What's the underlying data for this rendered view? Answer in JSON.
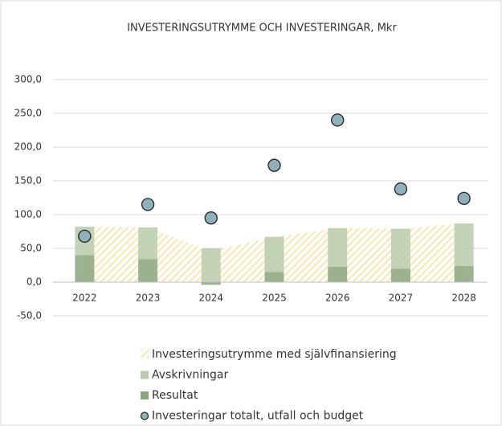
{
  "chart_data": {
    "type": "bar",
    "title": "INVESTERINGSUTRYMME OCH INVESTERINGAR, Mkr",
    "categories": [
      "2022",
      "2023",
      "2024",
      "2025",
      "2026",
      "2027",
      "2028"
    ],
    "series": [
      {
        "name": "Investeringsutrymme med självfinansiering",
        "type": "area",
        "color": "#f1e2ad",
        "values": [
          82,
          81,
          46,
          67,
          80,
          79,
          87
        ]
      },
      {
        "name": "Avskrivningar",
        "type": "bar",
        "color": "#b9cbad",
        "values": [
          42,
          47,
          50,
          52,
          57,
          59,
          63
        ]
      },
      {
        "name": "Resultat",
        "type": "bar",
        "color": "#8aa67c",
        "values": [
          40,
          34,
          -4,
          15,
          23,
          20,
          24
        ]
      },
      {
        "name": "Investeringar totalt, utfall och budget",
        "type": "scatter",
        "color": "#8fb1b9",
        "values": [
          68,
          115,
          95,
          173,
          240,
          138,
          124
        ]
      }
    ],
    "ylim": [
      -50,
      300
    ],
    "yticks": [
      {
        "value": -50,
        "label": "-50,0"
      },
      {
        "value": 0,
        "label": "0,0"
      },
      {
        "value": 50,
        "label": "50,0"
      },
      {
        "value": 100,
        "label": "100,0"
      },
      {
        "value": 150,
        "label": "150,0"
      },
      {
        "value": 200,
        "label": "200,0"
      },
      {
        "value": 250,
        "label": "250,0"
      },
      {
        "value": 300,
        "label": "300,0"
      }
    ],
    "grid": true
  }
}
